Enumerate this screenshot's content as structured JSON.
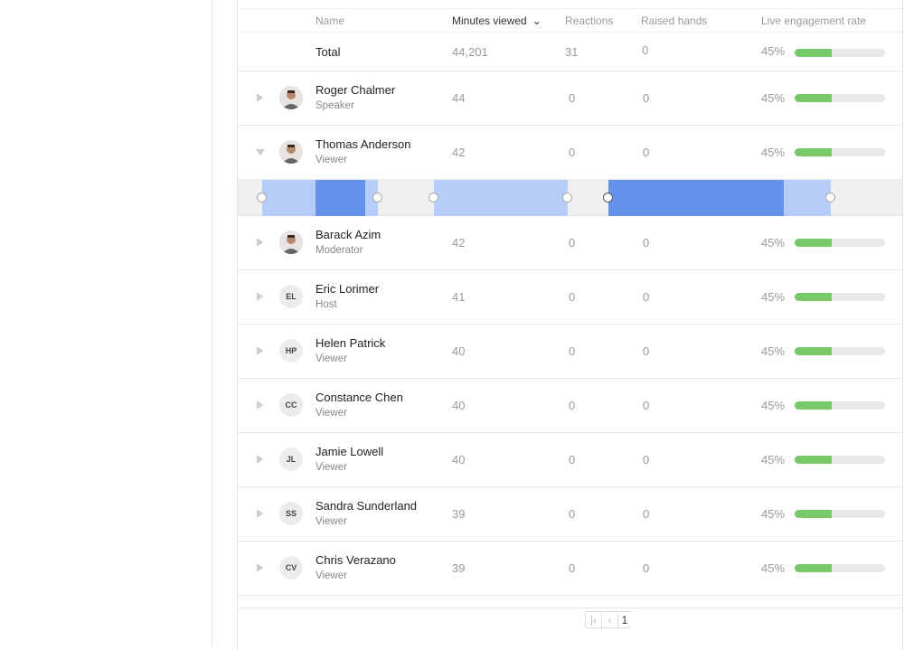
{
  "columns": {
    "name": "Name",
    "minutes": "Minutes viewed",
    "reactions": "Reactions",
    "raised": "Raised hands",
    "engagement": "Live engagement rate"
  },
  "total": {
    "label": "Total",
    "minutes": "44,201",
    "reactions": "31",
    "raised": "0",
    "rate": "45%",
    "rate_value": 45
  },
  "rows": [
    {
      "name": "Roger Chalmer",
      "role": "Speaker",
      "avatar": "photo",
      "initials": "",
      "minutes": "44",
      "reactions": "0",
      "raised": "0",
      "rate": "45%",
      "rate_value": 45,
      "expanded": false
    },
    {
      "name": "Thomas Anderson",
      "role": "Viewer",
      "avatar": "photo",
      "initials": "",
      "minutes": "42",
      "reactions": "0",
      "raised": "0",
      "rate": "45%",
      "rate_value": 45,
      "expanded": true
    },
    {
      "name": "Barack Azim",
      "role": "Moderator",
      "avatar": "photo",
      "initials": "",
      "minutes": "42",
      "reactions": "0",
      "raised": "0",
      "rate": "45%",
      "rate_value": 45,
      "expanded": false
    },
    {
      "name": "Eric Lorimer",
      "role": "Host",
      "avatar": "initials",
      "initials": "EL",
      "minutes": "41",
      "reactions": "0",
      "raised": "0",
      "rate": "45%",
      "rate_value": 45,
      "expanded": false
    },
    {
      "name": "Helen Patrick",
      "role": "Viewer",
      "avatar": "initials",
      "initials": "HP",
      "minutes": "40",
      "reactions": "0",
      "raised": "0",
      "rate": "45%",
      "rate_value": 45,
      "expanded": false
    },
    {
      "name": "Constance Chen",
      "role": "Viewer",
      "avatar": "initials",
      "initials": "CC",
      "minutes": "40",
      "reactions": "0",
      "raised": "0",
      "rate": "45%",
      "rate_value": 45,
      "expanded": false
    },
    {
      "name": "Jamie Lowell",
      "role": "Viewer",
      "avatar": "initials",
      "initials": "JL",
      "minutes": "40",
      "reactions": "0",
      "raised": "0",
      "rate": "45%",
      "rate_value": 45,
      "expanded": false
    },
    {
      "name": "Sandra Sunderland",
      "role": "Viewer",
      "avatar": "initials",
      "initials": "SS",
      "minutes": "39",
      "reactions": "0",
      "raised": "0",
      "rate": "45%",
      "rate_value": 45,
      "expanded": false
    },
    {
      "name": "Chris Verazano",
      "role": "Viewer",
      "avatar": "initials",
      "initials": "CV",
      "minutes": "39",
      "reactions": "0",
      "raised": "0",
      "rate": "45%",
      "rate_value": 45,
      "expanded": false
    }
  ],
  "pagination": {
    "first_icon": "first-page-icon",
    "prev_icon": "prev-page-icon",
    "current": "1"
  },
  "colors": {
    "engagement_fill": "#77c96a",
    "timeline_light": "#b6cdfa",
    "timeline_dark": "#6592ea"
  }
}
